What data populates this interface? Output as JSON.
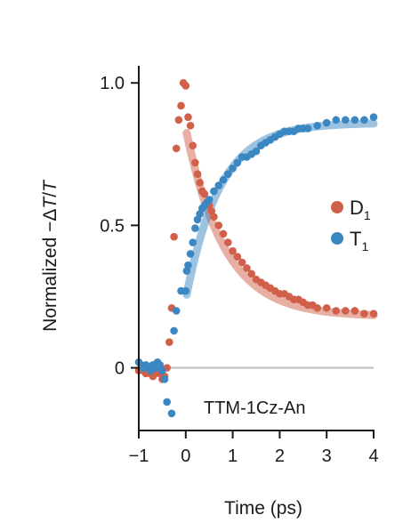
{
  "chart_data": {
    "type": "scatter",
    "title": "",
    "xlabel": "Time (ps)",
    "ylabel_parts": [
      "Normalized −",
      "Δ",
      "T",
      "/",
      "T"
    ],
    "xlim": [
      -1,
      4
    ],
    "ylim": [
      -0.22,
      1.06
    ],
    "x_ticks": [
      -1,
      0,
      1,
      2,
      3,
      4
    ],
    "x_tick_labels": [
      "−1",
      "0",
      "1",
      "2",
      "3",
      "4"
    ],
    "y_ticks": [
      0,
      0.5,
      1.0
    ],
    "y_tick_labels": [
      "0",
      "0.5",
      "1.0"
    ],
    "zero_line": true,
    "grid": false,
    "legend_position": "right",
    "annotation": "TTM-1Cz-An",
    "colors": {
      "D1": "#d1604b",
      "T1": "#3b87c2",
      "zero_line": "#bdbdbd",
      "axis": "#1a1a1a"
    },
    "series": [
      {
        "name": "D1",
        "label_main": "D",
        "label_sub": "1",
        "color": "#d1604b",
        "fit": {
          "model": "a*exp(-x/tau)+c",
          "a": 0.66,
          "tau": 0.82,
          "c": 0.18,
          "x_start": 0.02
        },
        "points": [
          [
            -1.0,
            -0.01
          ],
          [
            -0.95,
            0.0
          ],
          [
            -0.9,
            -0.01
          ],
          [
            -0.85,
            -0.02
          ],
          [
            -0.8,
            -0.01
          ],
          [
            -0.75,
            -0.02
          ],
          [
            -0.7,
            -0.03
          ],
          [
            -0.65,
            -0.02
          ],
          [
            -0.6,
            -0.01
          ],
          [
            -0.55,
            -0.02
          ],
          [
            -0.5,
            -0.04
          ],
          [
            -0.45,
            -0.03
          ],
          [
            -0.4,
            0.0
          ],
          [
            -0.35,
            0.09
          ],
          [
            -0.3,
            0.21
          ],
          [
            -0.25,
            0.46
          ],
          [
            -0.2,
            0.77
          ],
          [
            -0.15,
            0.87
          ],
          [
            -0.1,
            0.92
          ],
          [
            -0.05,
            1.0
          ],
          [
            0.0,
            0.99
          ],
          [
            0.05,
            0.88
          ],
          [
            0.1,
            0.85
          ],
          [
            0.15,
            0.78
          ],
          [
            0.2,
            0.72
          ],
          [
            0.25,
            0.68
          ],
          [
            0.3,
            0.65
          ],
          [
            0.35,
            0.62
          ],
          [
            0.4,
            0.61
          ],
          [
            0.45,
            0.58
          ],
          [
            0.5,
            0.57
          ],
          [
            0.55,
            0.55
          ],
          [
            0.6,
            0.53
          ],
          [
            0.7,
            0.5
          ],
          [
            0.8,
            0.47
          ],
          [
            0.9,
            0.44
          ],
          [
            1.0,
            0.41
          ],
          [
            1.1,
            0.39
          ],
          [
            1.2,
            0.37
          ],
          [
            1.3,
            0.35
          ],
          [
            1.4,
            0.33
          ],
          [
            1.5,
            0.31
          ],
          [
            1.6,
            0.3
          ],
          [
            1.7,
            0.29
          ],
          [
            1.8,
            0.28
          ],
          [
            1.9,
            0.27
          ],
          [
            2.0,
            0.26
          ],
          [
            2.1,
            0.26
          ],
          [
            2.2,
            0.25
          ],
          [
            2.3,
            0.24
          ],
          [
            2.4,
            0.24
          ],
          [
            2.5,
            0.23
          ],
          [
            2.6,
            0.22
          ],
          [
            2.7,
            0.22
          ],
          [
            2.8,
            0.21
          ],
          [
            3.0,
            0.21
          ],
          [
            3.2,
            0.2
          ],
          [
            3.4,
            0.2
          ],
          [
            3.6,
            0.2
          ],
          [
            3.8,
            0.19
          ],
          [
            4.0,
            0.19
          ]
        ]
      },
      {
        "name": "T1",
        "label_main": "T",
        "label_sub": "1",
        "color": "#3b87c2",
        "fit": {
          "model": "a*(1-exp(-x/tau))+c",
          "a": 0.62,
          "tau": 0.72,
          "c": 0.24,
          "x_start": 0.02
        },
        "points": [
          [
            -1.0,
            0.02
          ],
          [
            -0.95,
            0.01
          ],
          [
            -0.9,
            0.0
          ],
          [
            -0.85,
            0.01
          ],
          [
            -0.8,
            0.0
          ],
          [
            -0.75,
            -0.01
          ],
          [
            -0.7,
            0.01
          ],
          [
            -0.65,
            0.0
          ],
          [
            -0.6,
            0.02
          ],
          [
            -0.55,
            0.01
          ],
          [
            -0.5,
            -0.01
          ],
          [
            -0.45,
            -0.04
          ],
          [
            -0.4,
            -0.12
          ],
          [
            -0.3,
            -0.16
          ],
          [
            -0.25,
            0.13
          ],
          [
            -0.2,
            0.2
          ],
          [
            -0.1,
            0.27
          ],
          [
            0.0,
            0.27
          ],
          [
            0.02,
            0.34
          ],
          [
            0.05,
            0.36
          ],
          [
            0.1,
            0.4
          ],
          [
            0.15,
            0.44
          ],
          [
            0.2,
            0.49
          ],
          [
            0.25,
            0.52
          ],
          [
            0.3,
            0.54
          ],
          [
            0.35,
            0.56
          ],
          [
            0.4,
            0.57
          ],
          [
            0.45,
            0.58
          ],
          [
            0.5,
            0.59
          ],
          [
            0.6,
            0.62
          ],
          [
            0.7,
            0.64
          ],
          [
            0.8,
            0.66
          ],
          [
            0.9,
            0.68
          ],
          [
            1.0,
            0.7
          ],
          [
            1.1,
            0.72
          ],
          [
            1.2,
            0.74
          ],
          [
            1.3,
            0.74
          ],
          [
            1.4,
            0.75
          ],
          [
            1.5,
            0.76
          ],
          [
            1.6,
            0.78
          ],
          [
            1.7,
            0.79
          ],
          [
            1.8,
            0.8
          ],
          [
            1.9,
            0.81
          ],
          [
            2.0,
            0.82
          ],
          [
            2.1,
            0.83
          ],
          [
            2.2,
            0.83
          ],
          [
            2.3,
            0.83
          ],
          [
            2.4,
            0.84
          ],
          [
            2.5,
            0.84
          ],
          [
            2.6,
            0.84
          ],
          [
            2.8,
            0.85
          ],
          [
            3.0,
            0.86
          ],
          [
            3.2,
            0.87
          ],
          [
            3.4,
            0.87
          ],
          [
            3.6,
            0.87
          ],
          [
            3.8,
            0.87
          ],
          [
            4.0,
            0.88
          ]
        ]
      }
    ]
  }
}
